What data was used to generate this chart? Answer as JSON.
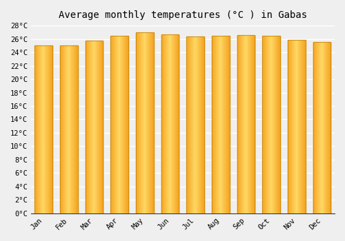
{
  "title": "Average monthly temperatures (°C ) in Gabas",
  "months": [
    "Jan",
    "Feb",
    "Mar",
    "Apr",
    "May",
    "Jun",
    "Jul",
    "Aug",
    "Sep",
    "Oct",
    "Nov",
    "Dec"
  ],
  "values": [
    25.0,
    25.0,
    25.8,
    26.5,
    27.0,
    26.7,
    26.4,
    26.5,
    26.6,
    26.5,
    25.9,
    25.5
  ],
  "bar_color_center": "#FFD966",
  "bar_color_edge": "#F5A623",
  "bar_edge_color": "#C8860A",
  "background_color": "#EFEFEF",
  "grid_color": "#FFFFFF",
  "ylim_min": 0,
  "ylim_max": 28,
  "ytick_step": 2,
  "title_fontsize": 10,
  "tick_fontsize": 7.5,
  "bar_width": 0.7,
  "figsize": [
    5.0,
    3.5
  ],
  "dpi": 100
}
